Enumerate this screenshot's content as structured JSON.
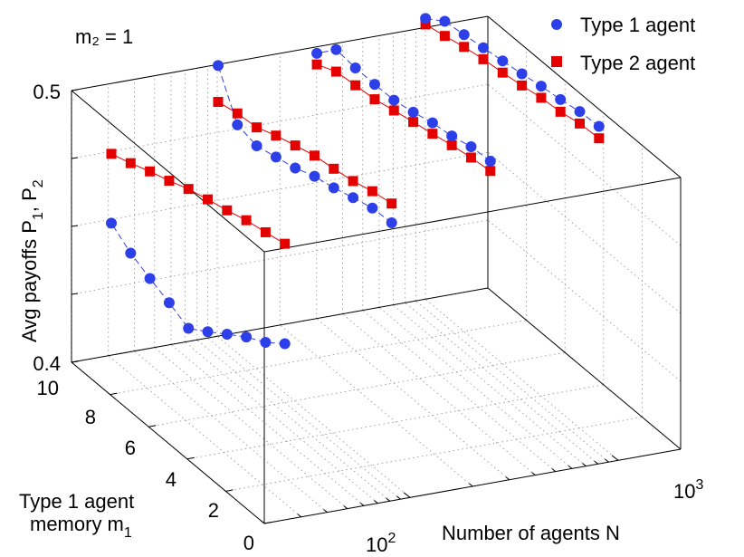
{
  "chart_data": {
    "type": "scatter",
    "subtitle": "m₂ = 1",
    "zlabel_main": "Avg payoffs P",
    "zlabel_sub1": "1",
    "zlabel_sep": ", P",
    "zlabel_sub2": "2",
    "ylabel_line1": "Type 1 agent",
    "ylabel_line2_main": "memory m",
    "ylabel_line2_sub": "1",
    "xlabel": "Number of agents N",
    "x_scale": "log",
    "x_ticks": [
      {
        "base": "10",
        "exp": "2",
        "value": 100
      },
      {
        "base": "10",
        "exp": "3",
        "value": 1000
      }
    ],
    "y_ticks": [
      "0",
      "2",
      "4",
      "6",
      "8",
      "10"
    ],
    "z_ticks": [
      "0.4",
      "0.5"
    ],
    "grid": true,
    "legend_position": "top-right",
    "legend": [
      {
        "name": "Type 1 agent",
        "color": "#2d3fe8",
        "marker": "circle"
      },
      {
        "name": "Type 2 agent",
        "color": "#e50000",
        "marker": "square"
      }
    ],
    "colors": {
      "type1": "#2d3fe8",
      "type2": "#e50000"
    },
    "m1_values": [
      1,
      2,
      3,
      4,
      5,
      6,
      7,
      8,
      9,
      10
    ],
    "groups": [
      {
        "N": 31,
        "type1": [
          0.4576,
          0.4522,
          0.4482,
          0.4433,
          0.4383,
          0.4336,
          0.4371,
          0.4401,
          0.4435,
          0.4486
        ],
        "type2": [
          0.4944,
          0.4927,
          0.4912,
          0.4889,
          0.487,
          0.4849,
          0.482,
          0.4795,
          0.4766,
          0.4741
        ]
      },
      {
        "N": 101,
        "type1": [
          0.4951,
          0.4946,
          0.4925,
          0.4902,
          0.4885,
          0.4856,
          0.4837,
          0.4819,
          0.4837,
          0.4996
        ],
        "type2": [
          0.5022,
          0.5008,
          0.4986,
          0.4972,
          0.4961,
          0.4939,
          0.4916,
          0.4887,
          0.4879,
          0.4862
        ]
      },
      {
        "N": 301,
        "type1": [
          0.5113,
          0.5107,
          0.5087,
          0.5076,
          0.5056,
          0.5041,
          0.504,
          0.5041,
          0.5049,
          0.4976
        ],
        "type2": [
          0.5077,
          0.5067,
          0.5053,
          0.5036,
          0.502,
          0.5003,
          0.4985,
          0.4977,
          0.4968,
          0.4935
        ]
      },
      {
        "N": 1001,
        "type1": [
          0.517,
          0.5165,
          0.515,
          0.514,
          0.5126,
          0.5114,
          0.5103,
          0.5092,
          0.5082,
          0.5033
        ],
        "type2": [
          0.5126,
          0.5121,
          0.5105,
          0.5097,
          0.5083,
          0.5071,
          0.5061,
          0.5047,
          0.5028,
          0.5011
        ]
      }
    ]
  }
}
